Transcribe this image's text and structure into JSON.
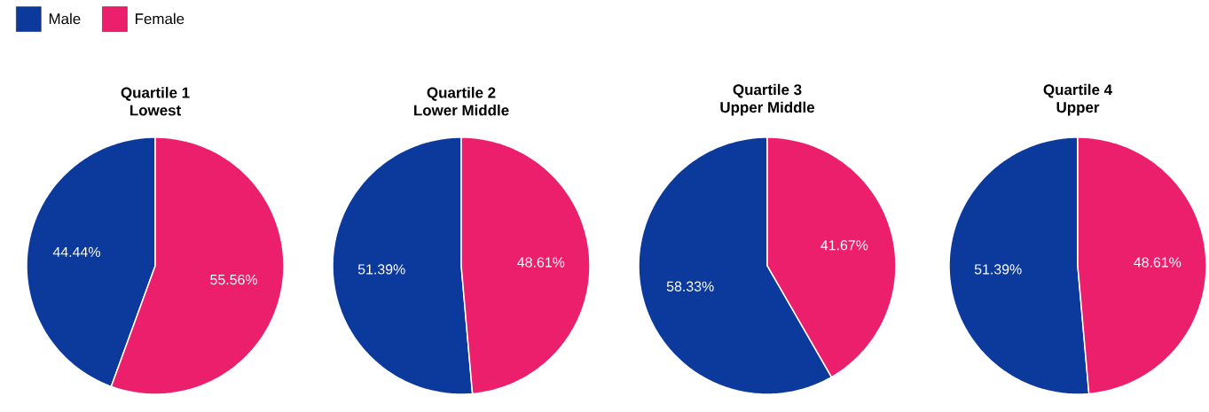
{
  "chart_data": [
    {
      "type": "pie",
      "title": "Quartile 1",
      "subtitle": "Lowest",
      "categories": [
        "Male",
        "Female"
      ],
      "values": [
        44.44,
        55.56
      ],
      "value_labels": [
        "44.44%",
        "55.56%"
      ],
      "colors": [
        "#0b3a9c",
        "#eb1f6c"
      ],
      "legend": "top left"
    },
    {
      "type": "pie",
      "title": "Quartile 2",
      "subtitle": "Lower Middle",
      "categories": [
        null,
        null
      ],
      "values": [
        51.39,
        48.61
      ],
      "value_labels": [
        "51.39%",
        "48.61%"
      ],
      "colors": [
        "#0b3a9c",
        "#eb1f6c"
      ]
    },
    {
      "type": "pie",
      "title": "Quartile 3",
      "subtitle": "Upper Middle",
      "categories": [
        null,
        null
      ],
      "values": [
        58.33,
        41.67
      ],
      "value_labels": [
        "58.33%",
        "41.67%"
      ],
      "colors": [
        "#0b3a9c",
        "#eb1f6c"
      ]
    },
    {
      "type": "pie",
      "title": "Quartile 4",
      "subtitle": "Upper",
      "categories": [
        null,
        null
      ],
      "values": [
        51.39,
        48.61
      ],
      "value_labels": [
        "51.39%",
        "48.61%"
      ],
      "colors": [
        "#0b3a9c",
        "#eb1f6c"
      ]
    }
  ]
}
